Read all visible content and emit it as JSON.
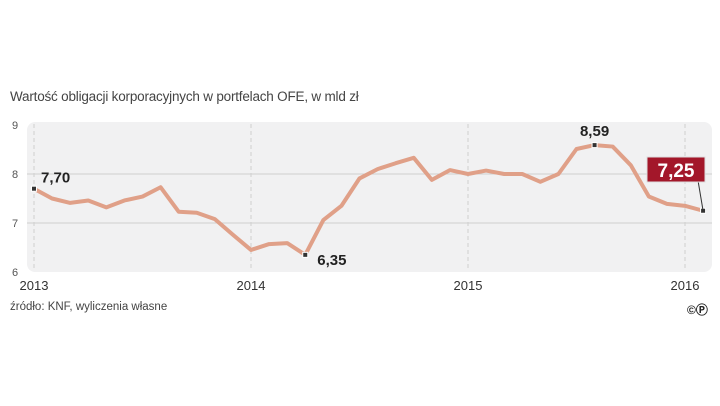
{
  "chart_data": {
    "type": "line",
    "title": "Wartość obligacji korporacyjnych w portfelach OFE, w mld zł",
    "source": "źródło: KNF, wyliczenia własne",
    "x_start": "2013-01",
    "x_frequency": "monthly",
    "x_ticks": [
      "2013",
      "2014",
      "2015",
      "2016"
    ],
    "y_ticks": [
      "6",
      "7",
      "8",
      "9"
    ],
    "ylim": [
      6,
      9
    ],
    "grid": true,
    "series": [
      {
        "color": "#e0a088",
        "values": [
          7.7,
          7.5,
          7.41,
          7.46,
          7.32,
          7.46,
          7.54,
          7.73,
          7.23,
          7.21,
          7.08,
          6.76,
          6.45,
          6.57,
          6.59,
          6.35,
          7.06,
          7.35,
          7.91,
          8.1,
          8.22,
          8.33,
          7.88,
          8.08,
          8.0,
          8.07,
          8.0,
          8.0,
          7.84,
          8.0,
          8.51,
          8.59,
          8.56,
          8.18,
          7.54,
          7.39,
          7.35,
          7.25
        ]
      }
    ],
    "annotations": [
      {
        "index": 0,
        "label": "7,70"
      },
      {
        "index": 15,
        "label": "6,35"
      },
      {
        "index": 31,
        "label": "8,59"
      },
      {
        "index": 37,
        "label": "7,25",
        "highlight_color": "#a3172a"
      }
    ]
  },
  "logo_text": "©P"
}
